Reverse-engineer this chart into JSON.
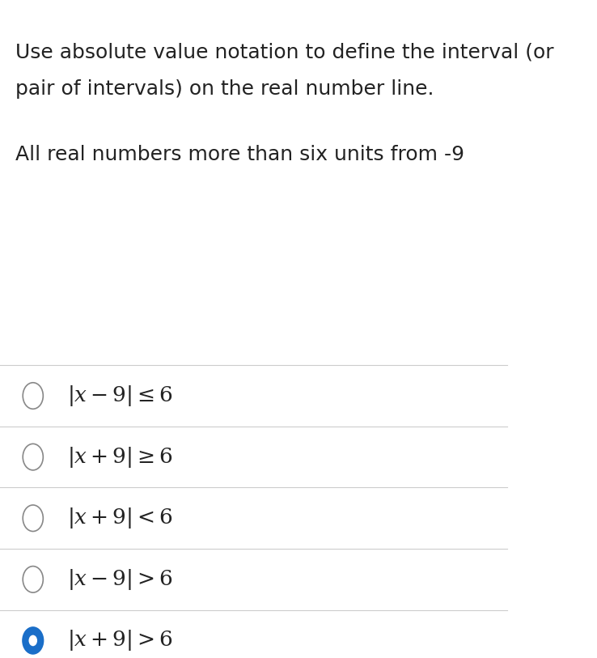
{
  "background_color": "#ffffff",
  "question_line1": "Use absolute value notation to define the interval (or",
  "question_line2": "pair of intervals) on the real number line.",
  "subquestion": "All real numbers more than six units from -9",
  "options": [
    {
      "text": "|x - 9| ≤ 6",
      "selected": false
    },
    {
      "text": "|x + 9| ≥ 6",
      "selected": false
    },
    {
      "text": "|x + 9| < 6",
      "selected": false
    },
    {
      "text": "|x - 9| > 6",
      "selected": false
    },
    {
      "text": "|x + 9| > 6",
      "selected": true
    }
  ],
  "divider_color": "#cccccc",
  "circle_color_unselected": "#ffffff",
  "circle_color_selected_fill": "#1a6ec8",
  "circle_color_selected_border": "#1a6ec8",
  "circle_border_color": "#888888",
  "text_color": "#222222",
  "font_size_question": 18,
  "font_size_subquestion": 18,
  "font_size_options": 19,
  "figsize": [
    7.38,
    8.13
  ],
  "dpi": 100
}
